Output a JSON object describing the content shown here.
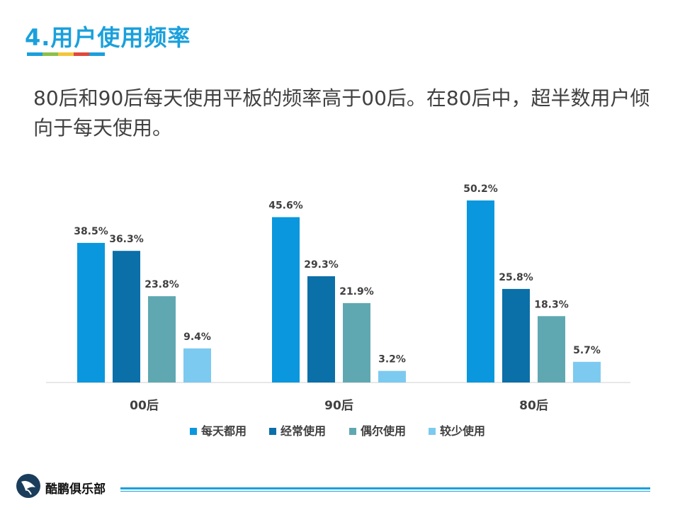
{
  "slide": {
    "title": "4.用户使用频率",
    "subtitle": "80后和90后每天使用平板的频率高于00后。在80后中，超半数用户倾向于每天使用。",
    "stripe_colors": [
      "#1aa0dc",
      "#8cc04a",
      "#f3c63b",
      "#e0483c",
      "#1aa0dc"
    ]
  },
  "chart_data": {
    "type": "bar",
    "categories": [
      "00后",
      "90后",
      "80后"
    ],
    "series": [
      {
        "name": "每天都用",
        "values": [
          38.5,
          45.6,
          50.2
        ],
        "labels": [
          "38.5%",
          "45.6%",
          "50.2%"
        ],
        "color": "#0a97dd"
      },
      {
        "name": "经常使用",
        "values": [
          36.3,
          29.3,
          25.8
        ],
        "labels": [
          "36.3%",
          "29.3%",
          "25.8%"
        ],
        "color": "#0b6fa8"
      },
      {
        "name": "偶尔使用",
        "values": [
          23.8,
          21.9,
          18.3
        ],
        "labels": [
          "23.8%",
          "21.9%",
          "18.3%"
        ],
        "color": "#5fa8b2"
      },
      {
        "name": "较少使用",
        "values": [
          9.4,
          3.2,
          5.7
        ],
        "labels": [
          "9.4%",
          "3.2%",
          "5.7%"
        ],
        "color": "#7dcaf0"
      }
    ],
    "ylim": [
      0,
      50.2
    ],
    "legend_position": "bottom",
    "grid": false
  },
  "footer": {
    "brand": "酷鹏俱乐部"
  }
}
